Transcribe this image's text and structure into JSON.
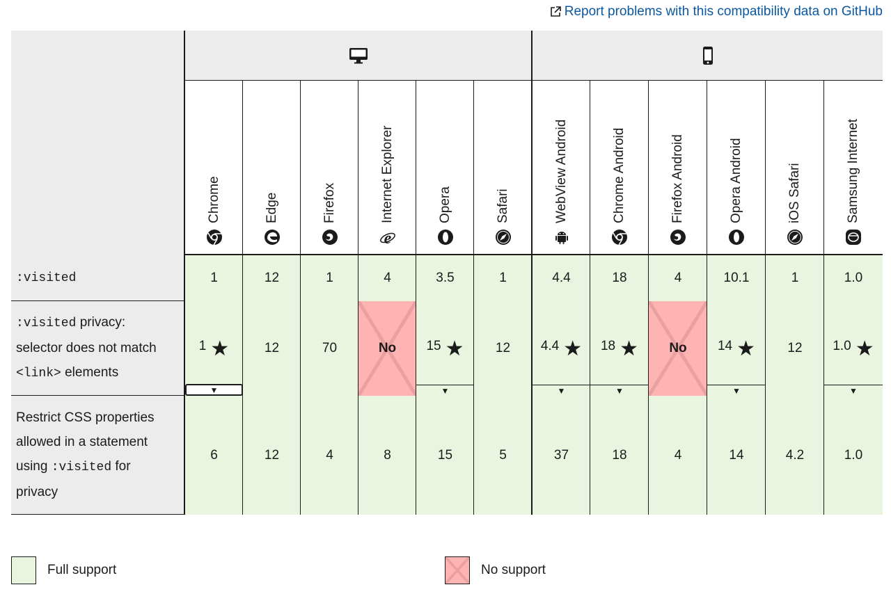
{
  "report_link": "Report problems with this compatibility data on GitHub",
  "platforms": [
    {
      "name": "desktop",
      "icon": "desktop-icon"
    },
    {
      "name": "mobile",
      "icon": "mobile-icon"
    }
  ],
  "browsers": [
    {
      "label": "Chrome",
      "icon": "chrome-icon"
    },
    {
      "label": "Edge",
      "icon": "edge-icon"
    },
    {
      "label": "Firefox",
      "icon": "firefox-icon"
    },
    {
      "label": "Internet Explorer",
      "icon": "ie-icon"
    },
    {
      "label": "Opera",
      "icon": "opera-icon"
    },
    {
      "label": "Safari",
      "icon": "safari-icon"
    },
    {
      "label": "WebView Android",
      "icon": "android-icon"
    },
    {
      "label": "Chrome Android",
      "icon": "chrome-icon"
    },
    {
      "label": "Firefox Android",
      "icon": "firefox-icon"
    },
    {
      "label": "Opera Android",
      "icon": "opera-icon"
    },
    {
      "label": "iOS Safari",
      "icon": "safari-icon"
    },
    {
      "label": "Samsung Internet",
      "icon": "samsung-icon"
    }
  ],
  "rows": [
    {
      "feature_code": ":visited",
      "cells": [
        "1",
        "12",
        "1",
        "4",
        "3.5",
        "1",
        "4.4",
        "18",
        "4",
        "10.1",
        "1",
        "1.0"
      ]
    },
    {
      "feature_code": ":visited",
      "feature_text1": "privacy:",
      "feature_text2": "selector does not match",
      "feature_code2": "<link>",
      "feature_text3": "elements",
      "cells": [
        "1",
        "12",
        "70",
        "No",
        "15",
        "12",
        "4.4",
        "18",
        "No",
        "14",
        "12",
        "1.0"
      ],
      "notes": [
        true,
        false,
        false,
        false,
        true,
        false,
        true,
        true,
        false,
        true,
        false,
        true
      ]
    },
    {
      "feature_text1": "Restrict CSS properties",
      "feature_text2": "allowed in a statement",
      "feature_text3": "using",
      "feature_code": ":visited",
      "feature_text4": "for",
      "feature_text5": "privacy",
      "cells": [
        "6",
        "12",
        "4",
        "8",
        "15",
        "5",
        "37",
        "18",
        "4",
        "14",
        "4.2",
        "1.0"
      ]
    }
  ],
  "legend": {
    "full": "Full support",
    "none": "No support"
  },
  "toggle_glyph": "▼",
  "note_glyph": "★",
  "colors": {
    "full_support": "#e9f5df",
    "no_support": "#ffb4b4",
    "link": "#0b57a0"
  }
}
